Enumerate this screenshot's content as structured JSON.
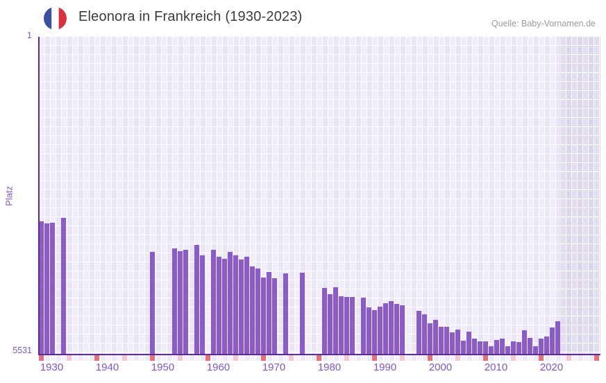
{
  "header": {
    "title": "Eleonora in Frankreich (1930-2023)",
    "source": "Quelle: Baby-Vornamen.de",
    "flag_icon": "france-flag-icon",
    "flag_colors": {
      "blue": "#3c50a0",
      "white": "#ffffff",
      "red": "#d8303f"
    }
  },
  "chart_data": {
    "type": "bar",
    "title": "Eleonora in Frankreich (1930-2023)",
    "xlabel": "",
    "ylabel": "Platz",
    "y_axis": {
      "top_label": "1",
      "bottom_label": "5531",
      "min": 1,
      "max": 5531,
      "inverted": true,
      "note": "rank 1 at top, bars rise toward better rank"
    },
    "x_axis": {
      "range": [
        1929,
        2031
      ],
      "decade_labels": [
        1930,
        1940,
        1950,
        1960,
        1970,
        1980,
        1990,
        2000,
        2010,
        2020
      ],
      "tick_years": [
        1930,
        1935,
        1940,
        1945,
        1950,
        1955,
        1960,
        1965,
        1970,
        1975,
        1980,
        1985,
        1990,
        1995,
        2000,
        2005,
        2010,
        2015,
        2020,
        2025,
        2030
      ],
      "major_tick_interval": 10,
      "minor_tick_interval": 5
    },
    "future_band": {
      "start_year": 2024,
      "end_year": 2031
    },
    "bars": [
      {
        "year": 1930,
        "rank": 3210
      },
      {
        "year": 1931,
        "rank": 3246
      },
      {
        "year": 1932,
        "rank": 3234
      },
      {
        "year": 1934,
        "rank": 3149
      },
      {
        "year": 1950,
        "rank": 3744
      },
      {
        "year": 1954,
        "rank": 3683
      },
      {
        "year": 1955,
        "rank": 3732
      },
      {
        "year": 1956,
        "rank": 3708
      },
      {
        "year": 1958,
        "rank": 3623
      },
      {
        "year": 1959,
        "rank": 3805
      },
      {
        "year": 1961,
        "rank": 3708
      },
      {
        "year": 1962,
        "rank": 3829
      },
      {
        "year": 1963,
        "rank": 3866
      },
      {
        "year": 1964,
        "rank": 3744
      },
      {
        "year": 1965,
        "rank": 3805
      },
      {
        "year": 1966,
        "rank": 3878
      },
      {
        "year": 1967,
        "rank": 3829
      },
      {
        "year": 1968,
        "rank": 3999
      },
      {
        "year": 1969,
        "rank": 4036
      },
      {
        "year": 1970,
        "rank": 4194
      },
      {
        "year": 1971,
        "rank": 4096
      },
      {
        "year": 1972,
        "rank": 4206
      },
      {
        "year": 1974,
        "rank": 4121
      },
      {
        "year": 1977,
        "rank": 4109
      },
      {
        "year": 1981,
        "rank": 4376
      },
      {
        "year": 1982,
        "rank": 4486
      },
      {
        "year": 1983,
        "rank": 4364
      },
      {
        "year": 1984,
        "rank": 4522
      },
      {
        "year": 1985,
        "rank": 4534
      },
      {
        "year": 1986,
        "rank": 4534
      },
      {
        "year": 1988,
        "rank": 4546
      },
      {
        "year": 1989,
        "rank": 4716
      },
      {
        "year": 1990,
        "rank": 4765
      },
      {
        "year": 1991,
        "rank": 4704
      },
      {
        "year": 1992,
        "rank": 4643
      },
      {
        "year": 1993,
        "rank": 4607
      },
      {
        "year": 1994,
        "rank": 4655
      },
      {
        "year": 1995,
        "rank": 4680
      },
      {
        "year": 1998,
        "rank": 4777
      },
      {
        "year": 1999,
        "rank": 4838
      },
      {
        "year": 2000,
        "rank": 4996
      },
      {
        "year": 2001,
        "rank": 4935
      },
      {
        "year": 2002,
        "rank": 5057
      },
      {
        "year": 2003,
        "rank": 5057
      },
      {
        "year": 2004,
        "rank": 5154
      },
      {
        "year": 2005,
        "rank": 5105
      },
      {
        "year": 2006,
        "rank": 5300
      },
      {
        "year": 2007,
        "rank": 5142
      },
      {
        "year": 2008,
        "rank": 5263
      },
      {
        "year": 2009,
        "rank": 5312
      },
      {
        "year": 2010,
        "rank": 5312
      },
      {
        "year": 2011,
        "rank": 5397
      },
      {
        "year": 2012,
        "rank": 5288
      },
      {
        "year": 2013,
        "rank": 5263
      },
      {
        "year": 2014,
        "rank": 5397
      },
      {
        "year": 2015,
        "rank": 5312
      },
      {
        "year": 2016,
        "rank": 5324
      },
      {
        "year": 2017,
        "rank": 5118
      },
      {
        "year": 2018,
        "rank": 5251
      },
      {
        "year": 2019,
        "rank": 5397
      },
      {
        "year": 2020,
        "rank": 5263
      },
      {
        "year": 2021,
        "rank": 5227
      },
      {
        "year": 2022,
        "rank": 5069
      },
      {
        "year": 2023,
        "rank": 4960
      }
    ],
    "colors": {
      "bar": "#8b5bc7",
      "axis_line": "#5a2b90",
      "axis_text": "#7e57c5",
      "major_tick": "#e4707c",
      "minor_tick": "#f3c9d3",
      "plot_bg": "#f2eef9",
      "plot_bg_alt": "#ebe6f5",
      "future_band_bg": "#e0dbee",
      "title_text": "#3b3b3b",
      "source_text": "#9b9b9b"
    },
    "legend": {
      "visible": false
    },
    "grid": {
      "visible": true,
      "color": "#ffffff"
    }
  }
}
